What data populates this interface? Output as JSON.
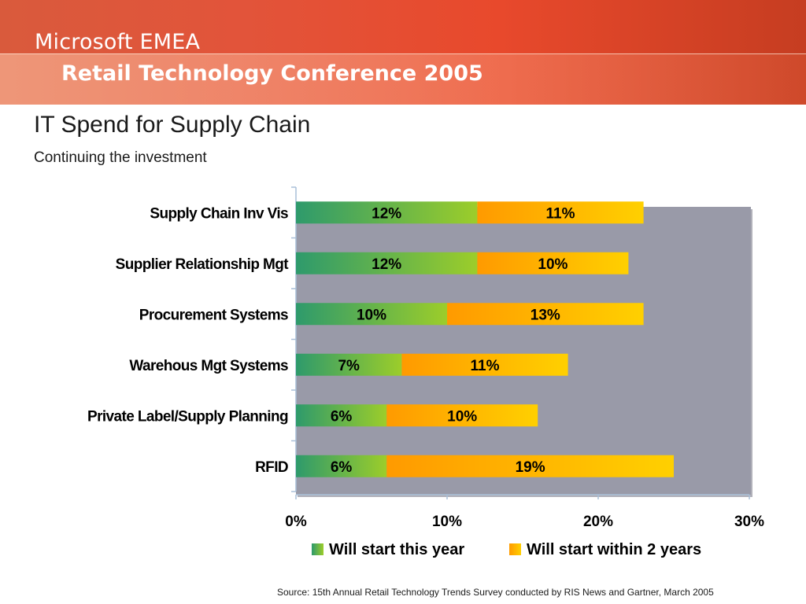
{
  "header": {
    "brand": "Microsoft EMEA",
    "conference": "Retail Technology Conference 2005"
  },
  "slide": {
    "title": "IT Spend for Supply Chain",
    "subtitle": "Continuing the investment",
    "source": "Source:  15th Annual Retail Technology Trends Survey conducted by RIS News and Gartner, March 2005"
  },
  "colors": {
    "series1_start": "#2e9a6c",
    "series1_end": "#9ccd2a",
    "series2_start": "#ff9a00",
    "series2_end": "#ffd000",
    "plot_background": "#999aa8"
  },
  "chart_data": {
    "type": "bar",
    "orientation": "horizontal",
    "stacked": true,
    "categories": [
      "Supply Chain Inv Vis",
      "Supplier Relationship Mgt",
      "Procurement Systems",
      "Warehous Mgt Systems",
      "Private Label/Supply Planning",
      "RFID"
    ],
    "series": [
      {
        "name": "Will start this year",
        "values": [
          12,
          12,
          10,
          7,
          6,
          6
        ]
      },
      {
        "name": "Will start within 2 years",
        "values": [
          11,
          10,
          13,
          11,
          10,
          19
        ]
      }
    ],
    "data_labels": [
      [
        "12%",
        "12%",
        "10%",
        "7%",
        "6%",
        "6%"
      ],
      [
        "11%",
        "10%",
        "13%",
        "11%",
        "10%",
        "19%"
      ]
    ],
    "x_ticks": [
      "0%",
      "10%",
      "20%",
      "30%"
    ],
    "xlim": [
      0,
      30
    ],
    "unit": "%",
    "legend": "bottom",
    "grid": false
  }
}
